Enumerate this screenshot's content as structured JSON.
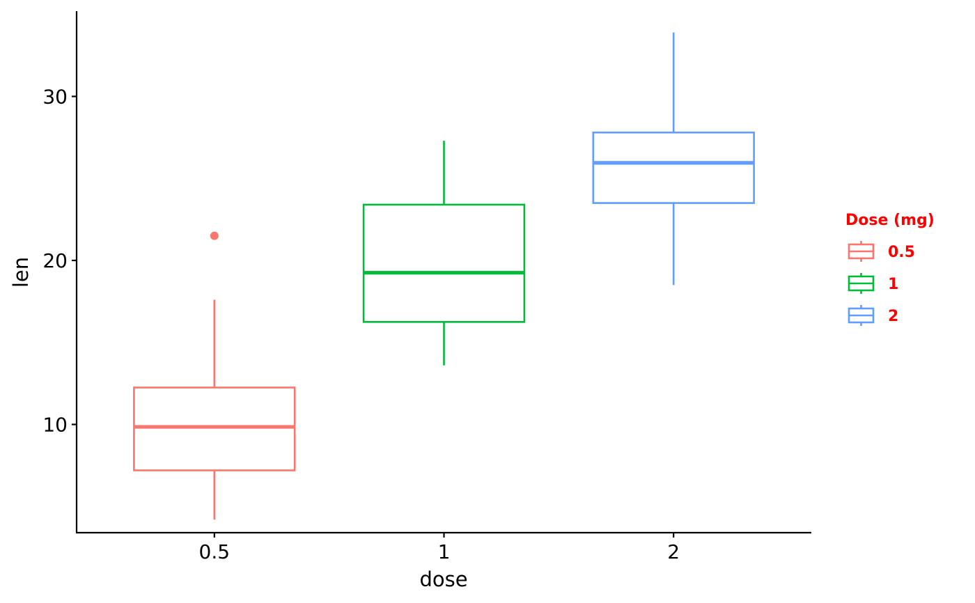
{
  "chart_data": {
    "type": "boxplot",
    "xlabel": "dose",
    "ylabel": "len",
    "categories": [
      "0.5",
      "1",
      "2"
    ],
    "ylim": [
      3.4,
      35.2
    ],
    "yticks": [
      10,
      20,
      30
    ],
    "grid": false,
    "legend": {
      "title": "Dose (mg)",
      "position": "right",
      "entries": [
        "0.5",
        "1",
        "2"
      ]
    },
    "colors": [
      "#F8766D",
      "#00BA38",
      "#619CFF"
    ],
    "legend_text_color": "#ff0000",
    "series": [
      {
        "category": "0.5",
        "whisker_low": 4.2,
        "q1": 7.2,
        "median": 9.85,
        "q3": 12.25,
        "whisker_high": 17.6,
        "outliers": [
          21.5
        ]
      },
      {
        "category": "1",
        "whisker_low": 13.6,
        "q1": 16.25,
        "median": 19.25,
        "q3": 23.4,
        "whisker_high": 27.3,
        "outliers": []
      },
      {
        "category": "2",
        "whisker_low": 18.5,
        "q1": 23.5,
        "median": 25.95,
        "q3": 27.8,
        "whisker_high": 33.9,
        "outliers": []
      }
    ]
  }
}
